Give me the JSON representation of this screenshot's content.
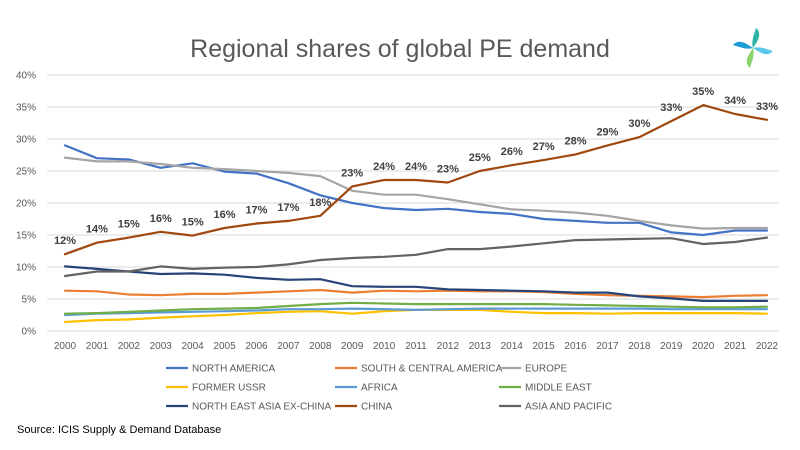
{
  "chart_data": {
    "type": "line",
    "title": "Regional shares of global PE demand",
    "xlabel": "",
    "ylabel": "",
    "ylim": [
      0,
      40
    ],
    "yticks": [
      "0%",
      "5%",
      "10%",
      "15%",
      "20%",
      "25%",
      "30%",
      "35%",
      "40%"
    ],
    "grid": true,
    "legend_position": "bottom",
    "x": [
      "2000",
      "2001",
      "2002",
      "2003",
      "2004",
      "2005",
      "2006",
      "2007",
      "2008",
      "2009",
      "2010",
      "2011",
      "2012",
      "2013",
      "2014",
      "2015",
      "2016",
      "2017",
      "2018",
      "2019",
      "2020",
      "2021",
      "2022"
    ],
    "series": [
      {
        "name": "NORTH AMERICA",
        "color": "#4472C4",
        "values": [
          29.0,
          27.0,
          26.8,
          25.5,
          26.2,
          24.9,
          24.6,
          23.1,
          21.2,
          20.0,
          19.2,
          18.9,
          19.1,
          18.6,
          18.3,
          17.5,
          17.2,
          16.9,
          16.9,
          15.4,
          15.0,
          15.7,
          15.7
        ]
      },
      {
        "name": "SOUTH & CENTRAL AMERICA",
        "color": "#ED7D31",
        "values": [
          6.3,
          6.2,
          5.7,
          5.6,
          5.8,
          5.8,
          6.0,
          6.2,
          6.4,
          6.0,
          6.3,
          6.2,
          6.3,
          6.2,
          6.2,
          6.1,
          5.8,
          5.6,
          5.5,
          5.4,
          5.3,
          5.5,
          5.6
        ]
      },
      {
        "name": "EUROPE",
        "color": "#A5A5A5",
        "values": [
          27.1,
          26.5,
          26.5,
          26.1,
          25.5,
          25.3,
          25.0,
          24.7,
          24.2,
          21.9,
          21.3,
          21.3,
          20.6,
          19.8,
          19.0,
          18.8,
          18.5,
          18.0,
          17.2,
          16.5,
          16.0,
          16.1,
          16.1
        ]
      },
      {
        "name": "FORMER USSR",
        "color": "#FFC000",
        "values": [
          1.4,
          1.7,
          1.8,
          2.1,
          2.3,
          2.5,
          2.8,
          3.0,
          3.1,
          2.7,
          3.1,
          3.3,
          3.3,
          3.3,
          3.0,
          2.8,
          2.8,
          2.7,
          2.8,
          2.8,
          2.8,
          2.8,
          2.7
        ]
      },
      {
        "name": "AFRICA",
        "color": "#5B9BD5",
        "values": [
          2.5,
          2.7,
          2.8,
          2.9,
          3.0,
          3.1,
          3.2,
          3.4,
          3.4,
          3.5,
          3.4,
          3.3,
          3.4,
          3.5,
          3.5,
          3.5,
          3.5,
          3.5,
          3.5,
          3.4,
          3.4,
          3.4,
          3.4
        ]
      },
      {
        "name": "MIDDLE EAST",
        "color": "#70AD47",
        "values": [
          2.7,
          2.8,
          3.0,
          3.2,
          3.4,
          3.5,
          3.6,
          3.9,
          4.2,
          4.4,
          4.3,
          4.2,
          4.2,
          4.2,
          4.2,
          4.2,
          4.1,
          4.0,
          3.9,
          3.8,
          3.7,
          3.7,
          3.8
        ]
      },
      {
        "name": "NORTH EAST ASIA EX-CHINA",
        "color": "#264478",
        "values": [
          10.1,
          9.7,
          9.3,
          8.9,
          9.0,
          8.8,
          8.3,
          8.0,
          8.1,
          7.0,
          6.9,
          6.9,
          6.5,
          6.4,
          6.3,
          6.2,
          6.0,
          6.0,
          5.4,
          5.1,
          4.7,
          4.7,
          4.7
        ]
      },
      {
        "name": "CHINA",
        "color": "#9E480E",
        "values": [
          12.0,
          13.8,
          14.6,
          15.5,
          14.9,
          16.1,
          16.8,
          17.2,
          18.0,
          22.6,
          23.6,
          23.6,
          23.2,
          25.0,
          25.9,
          26.7,
          27.6,
          29.0,
          30.3,
          32.8,
          35.3,
          33.9,
          33.0
        ],
        "data_labels": [
          "12%",
          "14%",
          "15%",
          "16%",
          "15%",
          "16%",
          "17%",
          "17%",
          "18%",
          "23%",
          "24%",
          "24%",
          "23%",
          "25%",
          "26%",
          "27%",
          "28%",
          "29%",
          "30%",
          "33%",
          "35%",
          "34%",
          "33%"
        ]
      },
      {
        "name": "ASIA AND PACIFIC",
        "color": "#636363",
        "values": [
          8.6,
          9.3,
          9.3,
          10.1,
          9.7,
          9.9,
          10.0,
          10.4,
          11.1,
          11.4,
          11.6,
          11.9,
          12.8,
          12.8,
          13.2,
          13.7,
          14.2,
          14.3,
          14.4,
          14.5,
          13.6,
          13.9,
          14.6
        ]
      }
    ]
  },
  "source": "Source: ICIS Supply & Demand Database",
  "logo_colors": [
    "#2BB3A4",
    "#5AC8E8",
    "#8BD46B",
    "#1E9CD7"
  ]
}
